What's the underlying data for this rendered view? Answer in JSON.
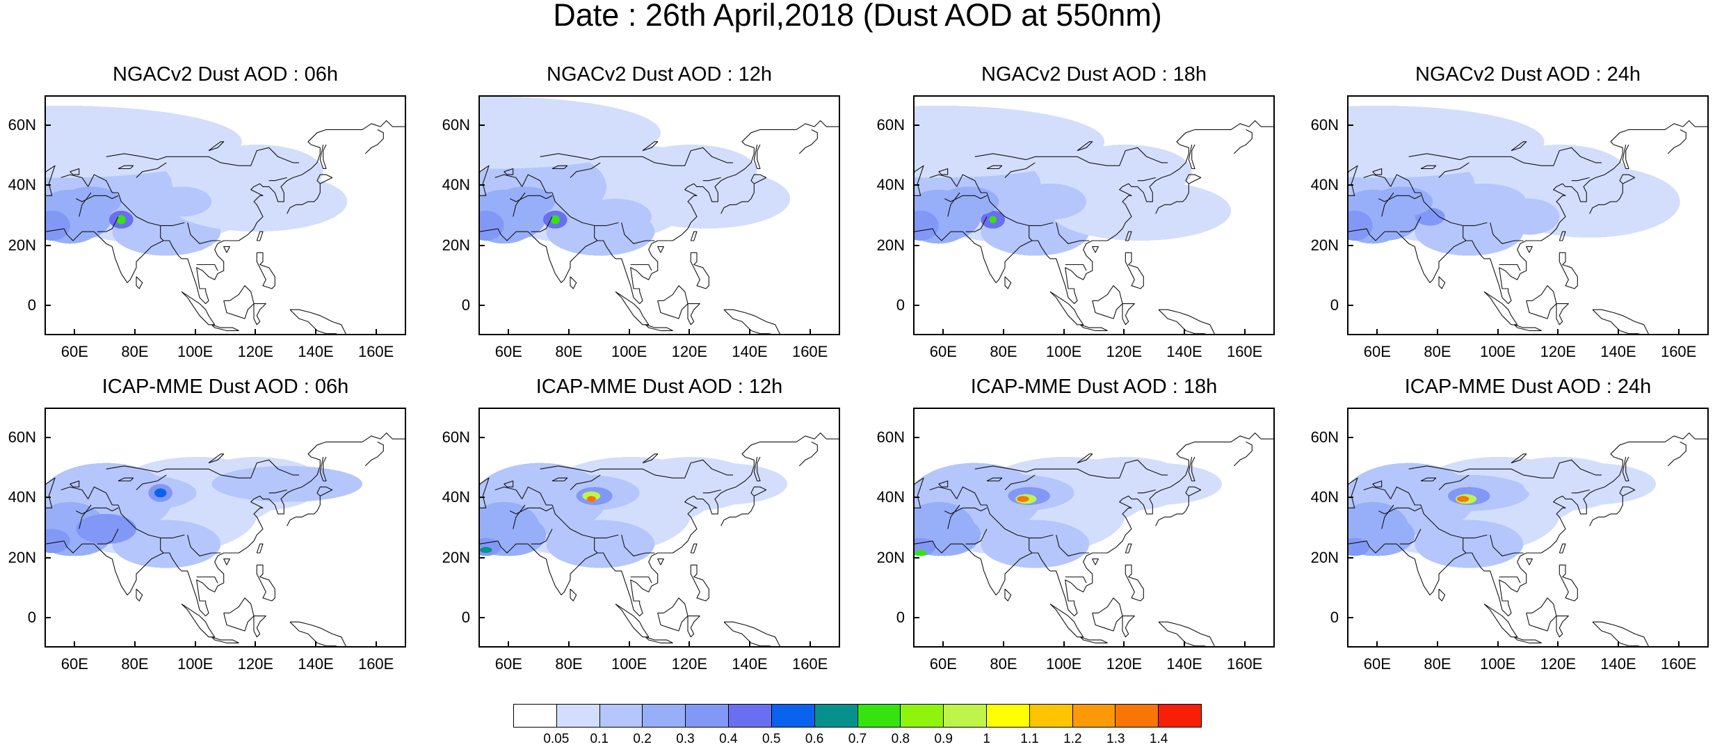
{
  "title": "Date : 26th April,2018 (Dust AOD at 550nm)",
  "panels": [
    {
      "title": "NGACv2 Dust AOD : 06h",
      "row": 0,
      "col": 0
    },
    {
      "title": "NGACv2 Dust AOD : 12h",
      "row": 0,
      "col": 1
    },
    {
      "title": "NGACv2 Dust AOD : 18h",
      "row": 0,
      "col": 2
    },
    {
      "title": "NGACv2 Dust AOD : 24h",
      "row": 0,
      "col": 3
    },
    {
      "title": "ICAP-MME Dust AOD : 06h",
      "row": 1,
      "col": 0
    },
    {
      "title": "ICAP-MME Dust AOD : 12h",
      "row": 1,
      "col": 1
    },
    {
      "title": "ICAP-MME Dust AOD : 18h",
      "row": 1,
      "col": 2
    },
    {
      "title": "ICAP-MME Dust AOD : 24h",
      "row": 1,
      "col": 3
    }
  ],
  "axes": {
    "lon_labels": [
      "60E",
      "80E",
      "100E",
      "120E",
      "140E",
      "160E"
    ],
    "lat_labels": [
      "60N",
      "40N",
      "20N",
      "0"
    ],
    "lon_values": [
      60,
      80,
      100,
      120,
      140,
      160
    ],
    "lat_values": [
      60,
      40,
      20,
      0
    ],
    "lon_range": [
      50,
      170
    ],
    "lat_range": [
      -10,
      70
    ]
  },
  "colorbar": {
    "labels": [
      "0.05",
      "0.1",
      "0.2",
      "0.3",
      "0.4",
      "0.5",
      "0.6",
      "0.7",
      "0.8",
      "0.9",
      "1",
      "1.1",
      "1.2",
      "1.3",
      "1.4"
    ],
    "colors": [
      "#ffffff",
      "#d3defd",
      "#b4c6fb",
      "#97aff9",
      "#8298f7",
      "#6a6ff0",
      "#0a63ef",
      "#07918e",
      "#35e30e",
      "#8ff40c",
      "#bff54a",
      "#ffff00",
      "#fdc400",
      "#fb9a06",
      "#f77606",
      "#f72004"
    ]
  }
}
